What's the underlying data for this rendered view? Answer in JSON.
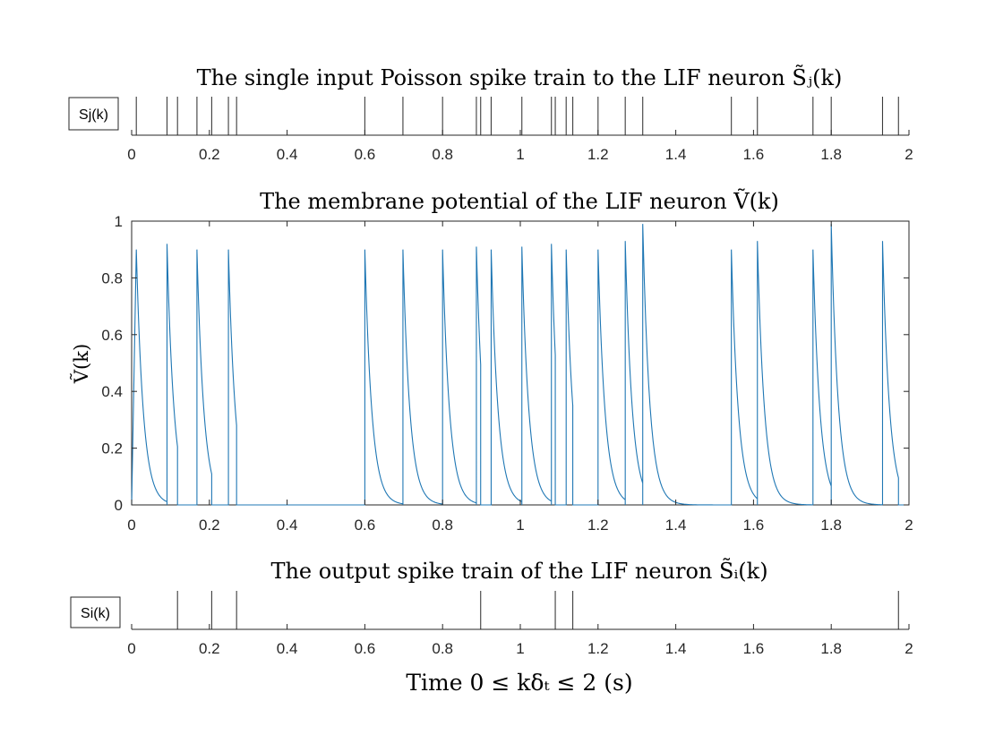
{
  "chart_data": [
    {
      "type": "spike-raster",
      "title": "The single input Poisson spike train to the LIF neuron S̃ⱼ(k)",
      "legend": "Sj(k)",
      "legend_placement": "left",
      "xlim": [
        0,
        2
      ],
      "x_ticks": [
        0,
        0.2,
        0.4,
        0.6,
        0.8,
        1,
        1.2,
        1.4,
        1.6,
        1.8,
        2
      ],
      "x_tick_labels": [
        "0",
        "0.2",
        "0.4",
        "0.6",
        "0.8",
        "1",
        "1.2",
        "1.4",
        "1.6",
        "1.8",
        "2"
      ],
      "spikes": [
        0.012,
        0.091,
        0.118,
        0.168,
        0.206,
        0.249,
        0.27,
        0.6,
        0.698,
        0.8,
        0.887,
        0.898,
        0.925,
        1.004,
        1.08,
        1.09,
        1.118,
        1.135,
        1.2,
        1.27,
        1.315,
        1.543,
        1.61,
        1.753,
        1.8,
        1.932,
        1.973
      ],
      "line_color": "#3c3c3c"
    },
    {
      "type": "line",
      "title": "The membrane potential of the LIF neuron Ṽ(k)",
      "ylabel": "Ṽ(k)",
      "xlim": [
        0,
        2
      ],
      "ylim": [
        0,
        1
      ],
      "x_ticks": [
        0,
        0.2,
        0.4,
        0.6,
        0.8,
        1,
        1.2,
        1.4,
        1.6,
        1.8,
        2
      ],
      "x_tick_labels": [
        "0",
        "0.2",
        "0.4",
        "0.6",
        "0.8",
        "1",
        "1.2",
        "1.4",
        "1.6",
        "1.8",
        "2"
      ],
      "y_ticks": [
        0,
        0.2,
        0.4,
        0.6,
        0.8,
        1
      ],
      "y_tick_labels": [
        "0",
        "0.2",
        "0.4",
        "0.6",
        "0.8",
        "1"
      ],
      "series_color": "#1f77b4",
      "decay_tau": 0.018,
      "events": [
        {
          "t": 0.012,
          "peak": 0.9
        },
        {
          "t": 0.091,
          "peak": 0.92
        },
        {
          "t": 0.118,
          "peak": 0.0
        },
        {
          "t": 0.168,
          "peak": 0.9
        },
        {
          "t": 0.206,
          "peak": 0.0
        },
        {
          "t": 0.249,
          "peak": 0.9
        },
        {
          "t": 0.27,
          "peak": 0.0
        },
        {
          "t": 0.6,
          "peak": 0.9
        },
        {
          "t": 0.698,
          "peak": 0.9
        },
        {
          "t": 0.8,
          "peak": 0.9
        },
        {
          "t": 0.887,
          "peak": 0.91
        },
        {
          "t": 0.898,
          "peak": 0.0
        },
        {
          "t": 0.925,
          "peak": 0.9
        },
        {
          "t": 1.004,
          "peak": 0.91
        },
        {
          "t": 1.08,
          "peak": 0.92
        },
        {
          "t": 1.09,
          "peak": 0.0
        },
        {
          "t": 1.118,
          "peak": 0.9
        },
        {
          "t": 1.135,
          "peak": 0.0
        },
        {
          "t": 1.2,
          "peak": 0.9
        },
        {
          "t": 1.27,
          "peak": 0.93
        },
        {
          "t": 1.315,
          "peak": 0.99
        },
        {
          "t": 1.543,
          "peak": 0.9
        },
        {
          "t": 1.61,
          "peak": 0.93
        },
        {
          "t": 1.753,
          "peak": 0.9
        },
        {
          "t": 1.8,
          "peak": 0.99
        },
        {
          "t": 1.932,
          "peak": 0.93
        },
        {
          "t": 1.973,
          "peak": 0.0
        }
      ]
    },
    {
      "type": "spike-raster",
      "title": "The output spike train of the LIF neuron S̃ᵢ(k)",
      "legend": "Si(k)",
      "legend_placement": "left",
      "xlabel": "Time 0 ≤ kδₜ ≤ 2 (s)",
      "xlim": [
        0,
        2
      ],
      "x_ticks": [
        0,
        0.2,
        0.4,
        0.6,
        0.8,
        1,
        1.2,
        1.4,
        1.6,
        1.8,
        2
      ],
      "x_tick_labels": [
        "0",
        "0.2",
        "0.4",
        "0.6",
        "0.8",
        "1",
        "1.2",
        "1.4",
        "1.6",
        "1.8",
        "2"
      ],
      "spikes": [
        0.118,
        0.206,
        0.27,
        0.898,
        1.09,
        1.135,
        1.973
      ],
      "line_color": "#3c3c3c"
    }
  ]
}
